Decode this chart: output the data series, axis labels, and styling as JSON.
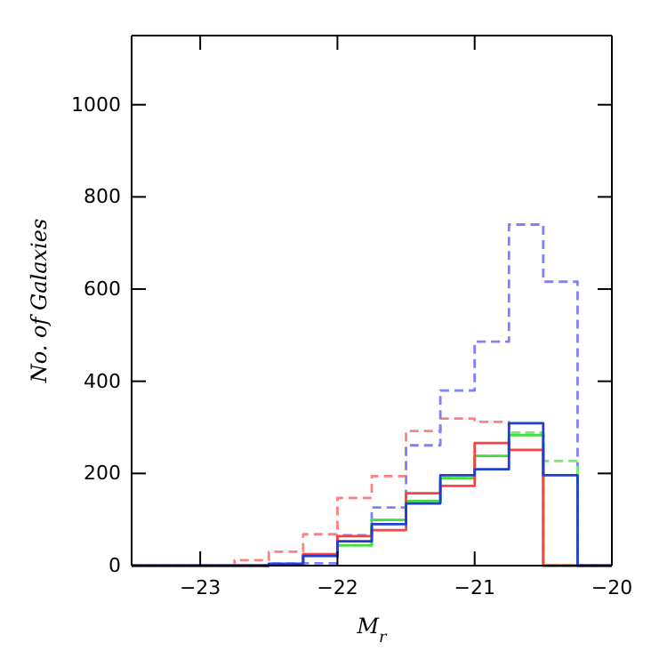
{
  "chart_data": {
    "type": "histogram",
    "xlabel": "M$_{r}$",
    "ylabel": "No. of Galaxies",
    "bins": [
      -23.5,
      -23.25,
      -23,
      -22.75,
      -22.5,
      -22.25,
      -22,
      -21.75,
      -21.5,
      -21.25,
      -21,
      -20.75,
      -20.5,
      -20.25,
      -20
    ],
    "xlim": [
      -23.5,
      -20
    ],
    "xticks": [
      -23,
      -22,
      -21,
      -20
    ],
    "ylim": [
      0,
      1150
    ],
    "yticks": [
      0,
      200,
      400,
      600,
      800,
      1000
    ],
    "series": [
      {
        "color": "#ff8080",
        "line_style": "dashed",
        "values": [
          0,
          0,
          0,
          12,
          30,
          68,
          147,
          194,
          292,
          319,
          312,
          288,
          0,
          0
        ]
      },
      {
        "color": "#7f7fff",
        "line_style": "dashed",
        "values": [
          0,
          0,
          0,
          0,
          4,
          5,
          66,
          126,
          261,
          380,
          486,
          740,
          616,
          0
        ]
      },
      {
        "color": "#70f070",
        "line_style": "dashed",
        "values": [
          0,
          0,
          0,
          0,
          2,
          23,
          44,
          99,
          140,
          190,
          238,
          288,
          227,
          0
        ]
      },
      {
        "color": "#40e040",
        "line_style": "solid",
        "values": [
          0,
          0,
          0,
          0,
          2,
          23,
          44,
          99,
          140,
          190,
          238,
          283,
          0,
          0
        ]
      },
      {
        "color": "#ff4040",
        "line_style": "solid",
        "values": [
          0,
          0,
          0,
          0,
          3,
          25,
          64,
          77,
          157,
          173,
          266,
          251,
          0,
          0
        ]
      },
      {
        "color": "#1f3fd0",
        "line_style": "solid",
        "values": [
          0,
          0,
          0,
          0,
          4,
          21,
          53,
          90,
          135,
          196,
          209,
          309,
          196,
          0
        ]
      }
    ]
  }
}
